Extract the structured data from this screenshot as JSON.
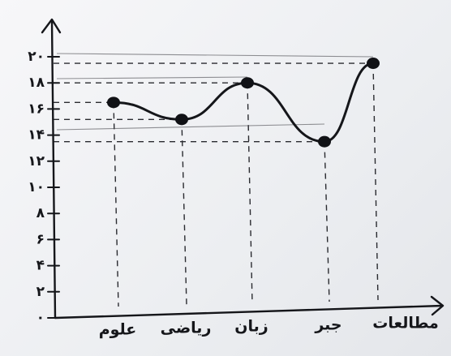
{
  "chart_data": {
    "type": "line",
    "categories": [
      "علوم",
      "ریاضی",
      "زبان",
      "جبر",
      "مطالعات"
    ],
    "values": [
      16.5,
      15.2,
      18,
      13.5,
      19.5
    ],
    "y_ticks": [
      "۰",
      "۲",
      "۴",
      "۶",
      "۸",
      "۱۰",
      "۱۲",
      "۱۴",
      "۱۶",
      "۱۸",
      "۲۰"
    ],
    "ylim": [
      0,
      20
    ],
    "grid": "dashed guide lines to each point",
    "title": "",
    "xlabel": "",
    "ylabel": ""
  }
}
